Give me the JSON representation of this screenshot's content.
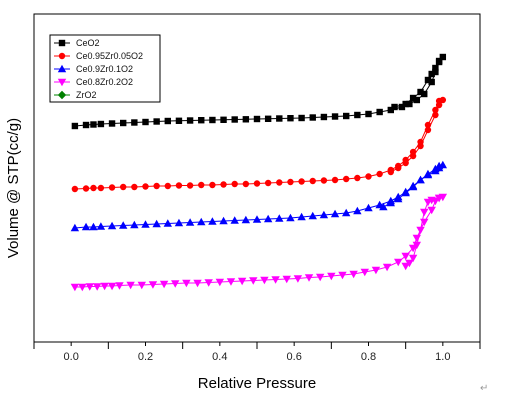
{
  "chart_data": {
    "type": "scatter",
    "xlabel": "Relative Pressure",
    "ylabel": "Volume @ STP(cc/g)",
    "xlim": [
      -0.1,
      1.1
    ],
    "xticks": [
      "0.0",
      "0.2",
      "0.4",
      "0.6",
      "0.8",
      "1.0"
    ],
    "y_tick_labels": "none",
    "grid": false,
    "legend_position": "top-left",
    "series": [
      {
        "name": "CeO2",
        "color": "#000000",
        "marker": "square",
        "points": [
          [
            0.01,
            126
          ],
          [
            0.04,
            125
          ],
          [
            0.06,
            124.5
          ],
          [
            0.08,
            124
          ],
          [
            0.11,
            123.5
          ],
          [
            0.14,
            123
          ],
          [
            0.17,
            122.5
          ],
          [
            0.2,
            122
          ],
          [
            0.23,
            121.5
          ],
          [
            0.26,
            121
          ],
          [
            0.29,
            120.8
          ],
          [
            0.32,
            120.5
          ],
          [
            0.35,
            120.2
          ],
          [
            0.38,
            120
          ],
          [
            0.41,
            119.8
          ],
          [
            0.44,
            119.5
          ],
          [
            0.47,
            119.3
          ],
          [
            0.5,
            119
          ],
          [
            0.53,
            118.8
          ],
          [
            0.56,
            118.5
          ],
          [
            0.59,
            118.2
          ],
          [
            0.62,
            118
          ],
          [
            0.65,
            117.5
          ],
          [
            0.68,
            117
          ],
          [
            0.71,
            116.5
          ],
          [
            0.74,
            116
          ],
          [
            0.77,
            115
          ],
          [
            0.8,
            114
          ],
          [
            0.83,
            112
          ],
          [
            0.86,
            110
          ],
          [
            0.89,
            107
          ],
          [
            0.91,
            104
          ],
          [
            0.93,
            100
          ],
          [
            0.95,
            94
          ],
          [
            0.97,
            82
          ],
          [
            0.98,
            72
          ],
          [
            0.99,
            62
          ],
          [
            1.0,
            57
          ],
          [
            0.99,
            61
          ],
          [
            0.98,
            68
          ],
          [
            0.97,
            74
          ],
          [
            0.96,
            80
          ],
          [
            0.94,
            92
          ],
          [
            0.92,
            98
          ],
          [
            0.9,
            104
          ],
          [
            0.87,
            107
          ]
        ]
      },
      {
        "name": "Ce0.95Zr0.05O2",
        "color": "#ff0000",
        "marker": "circle",
        "points": [
          [
            0.01,
            189
          ],
          [
            0.04,
            188.5
          ],
          [
            0.06,
            188
          ],
          [
            0.08,
            188
          ],
          [
            0.11,
            187.5
          ],
          [
            0.14,
            187
          ],
          [
            0.17,
            187
          ],
          [
            0.2,
            186.5
          ],
          [
            0.23,
            186
          ],
          [
            0.26,
            186
          ],
          [
            0.29,
            185.5
          ],
          [
            0.32,
            185.5
          ],
          [
            0.35,
            185
          ],
          [
            0.38,
            185
          ],
          [
            0.41,
            184.5
          ],
          [
            0.44,
            184
          ],
          [
            0.47,
            184
          ],
          [
            0.5,
            183.5
          ],
          [
            0.53,
            183
          ],
          [
            0.56,
            182.5
          ],
          [
            0.59,
            182
          ],
          [
            0.62,
            181.5
          ],
          [
            0.65,
            181
          ],
          [
            0.68,
            180.5
          ],
          [
            0.71,
            180
          ],
          [
            0.74,
            179
          ],
          [
            0.77,
            178
          ],
          [
            0.8,
            176.5
          ],
          [
            0.83,
            174
          ],
          [
            0.86,
            170
          ],
          [
            0.88,
            166
          ],
          [
            0.9,
            160
          ],
          [
            0.92,
            152
          ],
          [
            0.94,
            142
          ],
          [
            0.96,
            125
          ],
          [
            0.98,
            110
          ],
          [
            0.99,
            101
          ],
          [
            1.0,
            100
          ],
          [
            0.99,
            105
          ],
          [
            0.98,
            115
          ],
          [
            0.96,
            130
          ],
          [
            0.94,
            146
          ],
          [
            0.92,
            156
          ],
          [
            0.9,
            163
          ],
          [
            0.88,
            168
          ],
          [
            0.86,
            172
          ]
        ]
      },
      {
        "name": "Ce0.9Zr0.1O2",
        "color": "#0000ff",
        "marker": "triangle-up",
        "points": [
          [
            0.01,
            228
          ],
          [
            0.04,
            227
          ],
          [
            0.06,
            227
          ],
          [
            0.08,
            226.5
          ],
          [
            0.11,
            226
          ],
          [
            0.14,
            225.5
          ],
          [
            0.17,
            225
          ],
          [
            0.2,
            224.5
          ],
          [
            0.23,
            224
          ],
          [
            0.26,
            223.5
          ],
          [
            0.29,
            223
          ],
          [
            0.32,
            222.5
          ],
          [
            0.35,
            222
          ],
          [
            0.38,
            221.5
          ],
          [
            0.41,
            221
          ],
          [
            0.44,
            220.5
          ],
          [
            0.47,
            220
          ],
          [
            0.5,
            219.5
          ],
          [
            0.53,
            219
          ],
          [
            0.56,
            218.5
          ],
          [
            0.59,
            218
          ],
          [
            0.62,
            217
          ],
          [
            0.65,
            216
          ],
          [
            0.68,
            215
          ],
          [
            0.71,
            214
          ],
          [
            0.74,
            213
          ],
          [
            0.77,
            211
          ],
          [
            0.8,
            208
          ],
          [
            0.83,
            205
          ],
          [
            0.86,
            201
          ],
          [
            0.88,
            197
          ],
          [
            0.9,
            192
          ],
          [
            0.92,
            186
          ],
          [
            0.94,
            180
          ],
          [
            0.96,
            174
          ],
          [
            0.98,
            169
          ],
          [
            0.99,
            166
          ],
          [
            1.0,
            165
          ],
          [
            0.99,
            168
          ],
          [
            0.98,
            171
          ],
          [
            0.96,
            175
          ],
          [
            0.94,
            180
          ],
          [
            0.92,
            187
          ],
          [
            0.9,
            193
          ],
          [
            0.88,
            199
          ],
          [
            0.86,
            203
          ],
          [
            0.84,
            207
          ]
        ]
      },
      {
        "name": "Ce0.8Zr0.2O2",
        "color": "#ff00ff",
        "marker": "triangle-down",
        "points": [
          [
            0.01,
            287
          ],
          [
            0.03,
            287
          ],
          [
            0.05,
            286.5
          ],
          [
            0.07,
            286.5
          ],
          [
            0.09,
            286
          ],
          [
            0.11,
            286
          ],
          [
            0.13,
            285.5
          ],
          [
            0.16,
            285
          ],
          [
            0.19,
            285
          ],
          [
            0.22,
            284.5
          ],
          [
            0.25,
            284
          ],
          [
            0.28,
            283.5
          ],
          [
            0.31,
            283
          ],
          [
            0.34,
            283
          ],
          [
            0.37,
            282.5
          ],
          [
            0.4,
            282
          ],
          [
            0.43,
            281.5
          ],
          [
            0.46,
            281
          ],
          [
            0.49,
            280.5
          ],
          [
            0.52,
            280
          ],
          [
            0.55,
            279.5
          ],
          [
            0.58,
            279
          ],
          [
            0.61,
            278.5
          ],
          [
            0.64,
            277.5
          ],
          [
            0.67,
            277
          ],
          [
            0.7,
            276
          ],
          [
            0.73,
            275
          ],
          [
            0.76,
            274
          ],
          [
            0.79,
            272
          ],
          [
            0.82,
            270
          ],
          [
            0.85,
            267
          ],
          [
            0.88,
            262
          ],
          [
            0.9,
            256
          ],
          [
            0.92,
            248
          ],
          [
            0.93,
            238
          ],
          [
            0.95,
            222
          ],
          [
            0.97,
            210
          ],
          [
            0.98,
            201
          ],
          [
            0.99,
            198
          ],
          [
            1.0,
            197
          ],
          [
            0.99,
            198
          ],
          [
            0.97,
            200
          ],
          [
            0.96,
            202
          ],
          [
            0.95,
            212
          ],
          [
            0.94,
            230
          ],
          [
            0.93,
            245
          ],
          [
            0.92,
            258
          ],
          [
            0.91,
            263
          ],
          [
            0.9,
            266
          ]
        ]
      },
      {
        "name": "ZrO2",
        "color": "#008000",
        "marker": "diamond",
        "points": []
      }
    ]
  }
}
